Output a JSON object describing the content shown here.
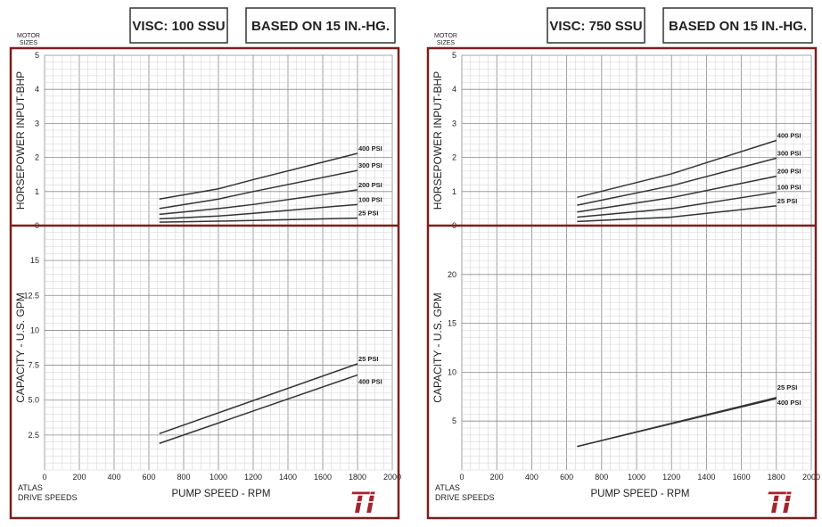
{
  "panels": [
    {
      "visc_label": "VISC: 100 SSU",
      "basis_label": "BASED ON 15 IN.-HG.",
      "motor_sizes_label": [
        "MOTOR",
        "SIZES"
      ],
      "atlas_label": [
        "ATLAS",
        "DRIVE SPEEDS"
      ],
      "top_ylabel": "HORSEPOWER INPUT-BHP",
      "bottom_ylabel": "CAPACITY - U.S. GPM",
      "xlabel": "PUMP SPEED - RPM",
      "logo_text": "TI"
    },
    {
      "visc_label": "VISC: 750 SSU",
      "basis_label": "BASED ON 15 IN.-HG.",
      "motor_sizes_label": [
        "MOTOR",
        "SIZES"
      ],
      "atlas_label": [
        "ATLAS",
        "DRIVE SPEEDS"
      ],
      "top_ylabel": "HORSEPOWER INPUT-BHP",
      "bottom_ylabel": "CAPACITY - U.S. GPM",
      "xlabel": "PUMP SPEED - RPM",
      "logo_text": "TI"
    }
  ],
  "colors": {
    "frame": "#7a1f1f",
    "logo": "#a3232f",
    "line": "#333333"
  },
  "chart_data": [
    {
      "type": "line",
      "title": "VISC: 100 SSU - HORSEPOWER INPUT-BHP",
      "xlabel": "PUMP SPEED - RPM",
      "ylabel": "HORSEPOWER INPUT-BHP",
      "xlim": [
        0,
        2000
      ],
      "ylim": [
        0,
        5
      ],
      "x_ticks": [
        0,
        200,
        400,
        600,
        800,
        1000,
        1200,
        1400,
        1600,
        1800,
        2000
      ],
      "x_tick_labels": [
        "0",
        "200",
        "400",
        "600",
        "800",
        "1000",
        "1200",
        "1400",
        "1600",
        "1800",
        "2000"
      ],
      "y_ticks": [
        0,
        1,
        2,
        3,
        4,
        5
      ],
      "y_tick_labels": [
        "0",
        "1",
        "2",
        "3",
        "4",
        "5"
      ],
      "grid": true,
      "series": [
        {
          "name": "400 PSI",
          "x": [
            660,
            1000,
            1200,
            1800
          ],
          "y": [
            0.78,
            1.08,
            1.35,
            2.12
          ]
        },
        {
          "name": "300 PSI",
          "x": [
            660,
            1000,
            1200,
            1800
          ],
          "y": [
            0.5,
            0.78,
            1.0,
            1.62
          ]
        },
        {
          "name": "200 PSI",
          "x": [
            660,
            1000,
            1200,
            1800
          ],
          "y": [
            0.33,
            0.5,
            0.62,
            1.05
          ]
        },
        {
          "name": "100 PSI",
          "x": [
            660,
            1000,
            1200,
            1800
          ],
          "y": [
            0.2,
            0.28,
            0.36,
            0.62
          ]
        },
        {
          "name": "25 PSI",
          "x": [
            660,
            1000,
            1200,
            1800
          ],
          "y": [
            0.1,
            0.13,
            0.15,
            0.22
          ]
        }
      ]
    },
    {
      "type": "line",
      "title": "VISC: 100 SSU - CAPACITY - U.S. GPM",
      "xlabel": "PUMP SPEED - RPM",
      "ylabel": "CAPACITY - U.S. GPM",
      "xlim": [
        0,
        2000
      ],
      "ylim": [
        0,
        17.5
      ],
      "x_ticks": [
        0,
        200,
        400,
        600,
        800,
        1000,
        1200,
        1400,
        1600,
        1800,
        2000
      ],
      "x_tick_labels": [
        "0",
        "200",
        "400",
        "600",
        "800",
        "1000",
        "1200",
        "1400",
        "1600",
        "1800",
        "2000"
      ],
      "y_ticks": [
        2.5,
        5.0,
        7.5,
        10,
        12.5,
        15
      ],
      "y_tick_labels": [
        "2.5",
        "5.0",
        "7.5",
        "10",
        "12.5",
        "15"
      ],
      "grid": true,
      "series": [
        {
          "name": "25 PSI",
          "x": [
            660,
            1800
          ],
          "y": [
            2.6,
            7.6
          ]
        },
        {
          "name": "400 PSI",
          "x": [
            660,
            1800
          ],
          "y": [
            1.9,
            6.8
          ]
        }
      ]
    },
    {
      "type": "line",
      "title": "VISC: 750 SSU - HORSEPOWER INPUT-BHP",
      "xlabel": "PUMP SPEED - RPM",
      "ylabel": "HORSEPOWER INPUT-BHP",
      "xlim": [
        0,
        2000
      ],
      "ylim": [
        0,
        5
      ],
      "x_ticks": [
        0,
        200,
        400,
        600,
        800,
        1000,
        1200,
        1400,
        1600,
        1800,
        2000
      ],
      "x_tick_labels": [
        "0",
        "200",
        "400",
        "600",
        "800",
        "1000",
        "1200",
        "1400",
        "1600",
        "1800",
        "2000"
      ],
      "y_ticks": [
        0,
        1,
        2,
        3,
        4,
        5
      ],
      "y_tick_labels": [
        "0",
        "1",
        "2",
        "3",
        "4",
        "5"
      ],
      "grid": true,
      "series": [
        {
          "name": "400 PSI",
          "x": [
            660,
            1200,
            1800
          ],
          "y": [
            0.83,
            1.52,
            2.5
          ]
        },
        {
          "name": "300 PSI",
          "x": [
            660,
            1200,
            1800
          ],
          "y": [
            0.6,
            1.17,
            1.98
          ]
        },
        {
          "name": "200 PSI",
          "x": [
            660,
            1200,
            1800
          ],
          "y": [
            0.4,
            0.82,
            1.45
          ]
        },
        {
          "name": "100 PSI",
          "x": [
            660,
            1200,
            1800
          ],
          "y": [
            0.25,
            0.5,
            0.98
          ]
        },
        {
          "name": "25 PSI",
          "x": [
            660,
            1200,
            1800
          ],
          "y": [
            0.12,
            0.25,
            0.58
          ]
        }
      ]
    },
    {
      "type": "line",
      "title": "VISC: 750 SSU - CAPACITY - U.S. GPM",
      "xlabel": "PUMP SPEED - RPM",
      "ylabel": "CAPACITY - U.S. GPM",
      "xlim": [
        0,
        2000
      ],
      "ylim": [
        0,
        25
      ],
      "x_ticks": [
        0,
        200,
        400,
        600,
        800,
        1000,
        1200,
        1400,
        1600,
        1800,
        2000
      ],
      "x_tick_labels": [
        "0",
        "200",
        "400",
        "600",
        "800",
        "1000",
        "1200",
        "1400",
        "1600",
        "1800",
        "2000"
      ],
      "y_ticks": [
        5,
        10,
        15,
        20
      ],
      "y_tick_labels": [
        "5",
        "10",
        "15",
        "20"
      ],
      "grid": true,
      "series": [
        {
          "name": "25 PSI",
          "x": [
            660,
            1800
          ],
          "y": [
            2.4,
            7.4
          ]
        },
        {
          "name": "400 PSI",
          "x": [
            660,
            1800
          ],
          "y": [
            2.4,
            7.3
          ]
        }
      ]
    }
  ]
}
